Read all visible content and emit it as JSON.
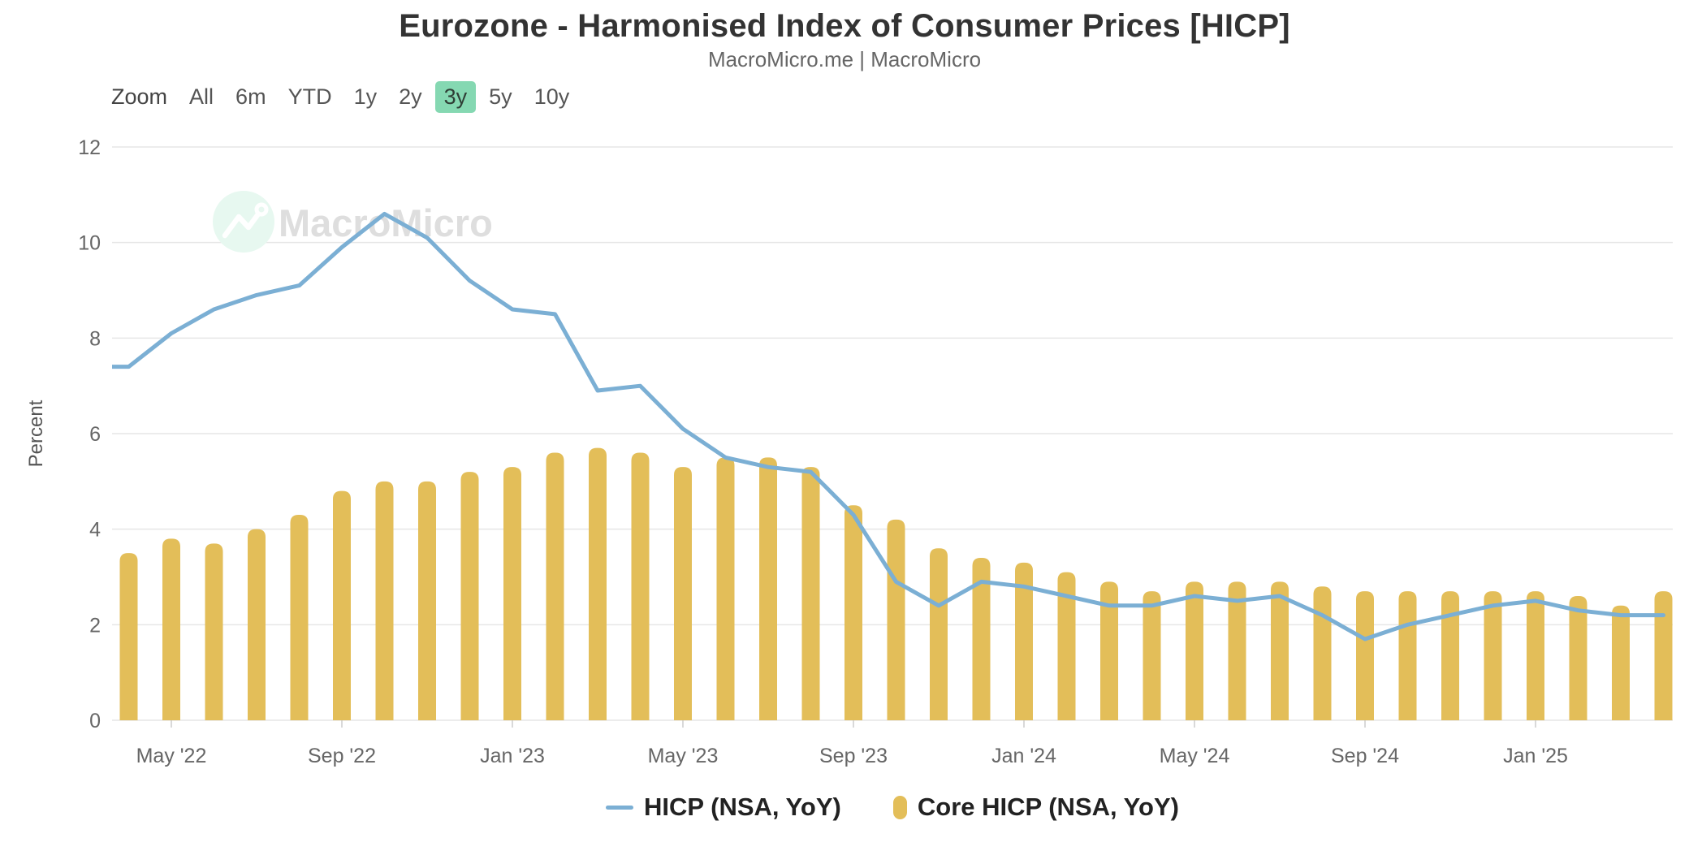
{
  "header": {
    "title": "Eurozone - Harmonised Index of Consumer Prices [HICP]",
    "subtitle": "MacroMicro.me | MacroMicro"
  },
  "toolbar": {
    "zoom_label": "Zoom",
    "range_buttons": [
      "All",
      "6m",
      "YTD",
      "1y",
      "2y",
      "3y",
      "5y",
      "10y"
    ],
    "selected_button": "3y"
  },
  "watermark": {
    "brand_text": "MacroMicro"
  },
  "colors": {
    "hicp_line": "#7bafd4",
    "core_bar": "#e3be59",
    "selected_button_bg": "#85d8b2",
    "grid_line": "#e6e6e6",
    "tick_mark": "#cccccc",
    "axis_text": "#666666",
    "title_text": "#333333",
    "subtitle_text": "#666666",
    "watermark_text": "#dedede",
    "watermark_circle": "#e7f8f0"
  },
  "y_axis": {
    "title": "Percent",
    "ticks": [
      0,
      2,
      4,
      6,
      8,
      10,
      12
    ],
    "min": 0,
    "max": 12
  },
  "x_axis": {
    "ticks": [
      {
        "label": "May '22",
        "month": "2022-05"
      },
      {
        "label": "Sep '22",
        "month": "2022-09"
      },
      {
        "label": "Jan '23",
        "month": "2023-01"
      },
      {
        "label": "May '23",
        "month": "2023-05"
      },
      {
        "label": "Sep '23",
        "month": "2023-09"
      },
      {
        "label": "Jan '24",
        "month": "2024-01"
      },
      {
        "label": "May '24",
        "month": "2024-05"
      },
      {
        "label": "Sep '24",
        "month": "2024-09"
      },
      {
        "label": "Jan '25",
        "month": "2025-01"
      }
    ]
  },
  "legend": {
    "items": [
      {
        "label": "HICP (NSA, YoY)",
        "marker": "line-dash",
        "color": "#7bafd4"
      },
      {
        "label": "Core HICP (NSA, YoY)",
        "marker": "bar-pill",
        "color": "#e3be59"
      }
    ]
  },
  "chart_data": {
    "type": "mixed",
    "title": "Eurozone - Harmonised Index of Consumer Prices [HICP]",
    "ylabel": "Percent",
    "ylim": [
      0,
      12
    ],
    "grid": "horizontal-only",
    "legend_position": "bottom-center",
    "note": "Monthly data; 3y range shown. First line point (2022-03) is clipped at the left plot edge.",
    "series": [
      {
        "name": "HICP (NSA, YoY)",
        "type": "line",
        "color": "#7bafd4",
        "months": [
          "2022-03",
          "2022-04",
          "2022-05",
          "2022-06",
          "2022-07",
          "2022-08",
          "2022-09",
          "2022-10",
          "2022-11",
          "2022-12",
          "2023-01",
          "2023-02",
          "2023-03",
          "2023-04",
          "2023-05",
          "2023-06",
          "2023-07",
          "2023-08",
          "2023-09",
          "2023-10",
          "2023-11",
          "2023-12",
          "2024-01",
          "2024-02",
          "2024-03",
          "2024-04",
          "2024-05",
          "2024-06",
          "2024-07",
          "2024-08",
          "2024-09",
          "2024-10",
          "2024-11",
          "2024-12",
          "2025-01",
          "2025-02",
          "2025-03",
          "2025-04"
        ],
        "values": [
          7.4,
          7.4,
          8.1,
          8.6,
          8.9,
          9.1,
          9.9,
          10.6,
          10.1,
          9.2,
          8.6,
          8.5,
          6.9,
          7.0,
          6.1,
          5.5,
          5.3,
          5.2,
          4.3,
          2.9,
          2.4,
          2.9,
          2.8,
          2.6,
          2.4,
          2.4,
          2.6,
          2.5,
          2.6,
          2.2,
          1.7,
          2.0,
          2.2,
          2.4,
          2.5,
          2.3,
          2.2,
          2.2
        ]
      },
      {
        "name": "Core HICP (NSA, YoY)",
        "type": "bar",
        "color": "#e3be59",
        "months": [
          "2022-04",
          "2022-05",
          "2022-06",
          "2022-07",
          "2022-08",
          "2022-09",
          "2022-10",
          "2022-11",
          "2022-12",
          "2023-01",
          "2023-02",
          "2023-03",
          "2023-04",
          "2023-05",
          "2023-06",
          "2023-07",
          "2023-08",
          "2023-09",
          "2023-10",
          "2023-11",
          "2023-12",
          "2024-01",
          "2024-02",
          "2024-03",
          "2024-04",
          "2024-05",
          "2024-06",
          "2024-07",
          "2024-08",
          "2024-09",
          "2024-10",
          "2024-11",
          "2024-12",
          "2025-01",
          "2025-02",
          "2025-03",
          "2025-04"
        ],
        "values": [
          3.5,
          3.8,
          3.7,
          4.0,
          4.3,
          4.8,
          5.0,
          5.0,
          5.2,
          5.3,
          5.6,
          5.7,
          5.6,
          5.3,
          5.5,
          5.5,
          5.3,
          4.5,
          4.2,
          3.6,
          3.4,
          3.3,
          3.1,
          2.9,
          2.7,
          2.9,
          2.9,
          2.9,
          2.8,
          2.7,
          2.7,
          2.7,
          2.7,
          2.7,
          2.6,
          2.4,
          2.7
        ]
      }
    ]
  }
}
